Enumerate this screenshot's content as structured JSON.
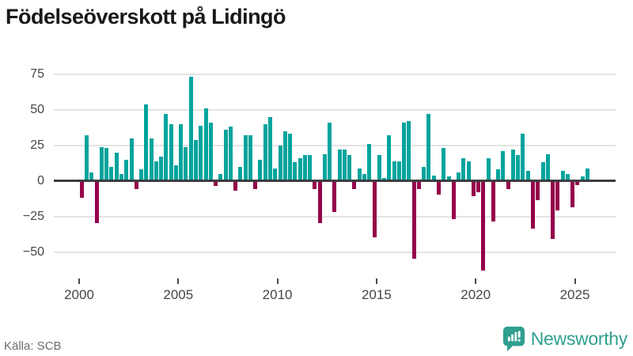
{
  "page": {
    "title": "Födelseöverskott på Lidingö"
  },
  "footer": {
    "source": "Källa: SCB",
    "brand": "Newsworthy"
  },
  "colors": {
    "positive": "#00a49d",
    "negative": "#95004a",
    "axis_line": "#3d3d3d",
    "gridline": "#e4e4e4",
    "tick_label": "#454545",
    "brand_teal": "#2f9f90"
  },
  "chart_data": {
    "type": "bar",
    "title": "Födelseöverskott på Lidingö",
    "x_period": "quarterly",
    "x_start": "2000-Q1",
    "x_end": "2025-Q3",
    "values": [
      -11,
      31,
      5,
      -29,
      23,
      22,
      9,
      19,
      4,
      14,
      29,
      -5,
      7,
      53,
      29,
      13,
      16,
      46,
      39,
      10,
      39,
      23,
      72,
      28,
      38,
      50,
      40,
      -3,
      4,
      35,
      37,
      -6,
      9,
      31,
      31,
      -5,
      14,
      39,
      44,
      8,
      24,
      34,
      32,
      12,
      15,
      17,
      17,
      -5,
      -29,
      18,
      40,
      -21,
      21,
      21,
      17,
      -5,
      8,
      4,
      25,
      -39,
      17,
      1,
      31,
      13,
      13,
      40,
      41,
      -54,
      -5,
      9,
      46,
      3,
      -9,
      22,
      2,
      -26,
      5,
      15,
      13,
      -10,
      -7,
      -62,
      15,
      -28,
      7,
      20,
      -5,
      21,
      17,
      32,
      6,
      -33,
      -13,
      12,
      18,
      -40,
      -20,
      6,
      4,
      -18,
      -2,
      2,
      8
    ],
    "xticks": [
      2000,
      2005,
      2010,
      2015,
      2020,
      2025
    ],
    "yticks": [
      75,
      50,
      25,
      0,
      -25,
      -50
    ],
    "ylim": [
      -70,
      80
    ],
    "grid": "horizontal-only",
    "legend": "none",
    "positive_color": "#00a49d",
    "negative_color": "#95004a"
  }
}
